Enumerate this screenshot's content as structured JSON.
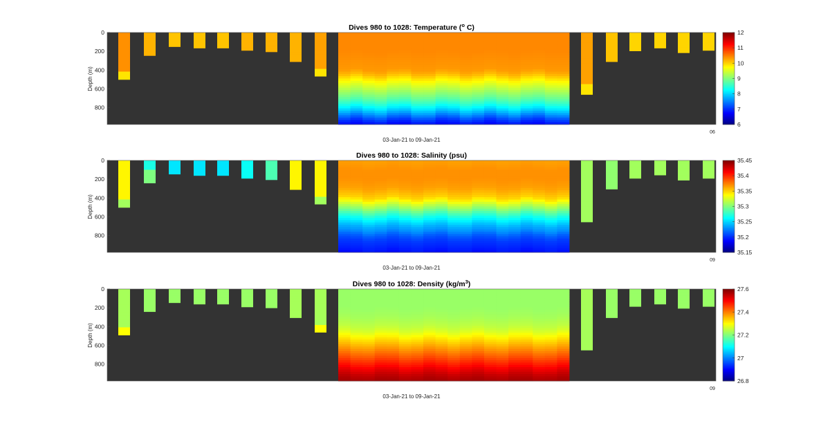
{
  "figure": {
    "background": "#ffffff",
    "plot_background": "#333333",
    "colormap": "jet"
  },
  "chart_data": [
    {
      "type": "heatmap",
      "title": "Dives 980 to 1028: Temperature (",
      "title_sup": "o",
      "title_after": " C)",
      "xlabel": "03-Jan-21 to 09-Jan-21",
      "ylabel": "Depth (m)",
      "ylim": [
        0,
        980
      ],
      "yticks": [
        "0",
        "200",
        "400",
        "600",
        "800"
      ],
      "y_tick_values": [
        0,
        200,
        400,
        600,
        800
      ],
      "corner_label": "06",
      "colorbar": {
        "min": 6,
        "max": 12,
        "tick_values": [
          6,
          7,
          8,
          9,
          10,
          11,
          12
        ],
        "tick_labels": [
          "6",
          "7",
          "8",
          "9",
          "10",
          "11",
          "12"
        ]
      },
      "shallow_dives": [
        {
          "max_depth": 500,
          "value": 10.4,
          "bottom_value": 9.9
        },
        {
          "max_depth": 245,
          "value": 10.2
        },
        {
          "max_depth": 150,
          "value": 10.1
        },
        {
          "max_depth": 165,
          "value": 10.1
        },
        {
          "max_depth": 165,
          "value": 10.1
        },
        {
          "max_depth": 190,
          "value": 10.2
        },
        {
          "max_depth": 205,
          "value": 10.2
        },
        {
          "max_depth": 310,
          "value": 10.2
        },
        {
          "max_depth": 465,
          "value": 10.3,
          "bottom_value": 9.9
        }
      ],
      "deep_profile": {
        "depth": [
          0,
          100,
          200,
          300,
          400,
          450,
          500,
          550,
          600,
          650,
          700,
          750,
          800,
          850,
          900,
          950,
          980
        ],
        "value": [
          10.45,
          10.45,
          10.45,
          10.4,
          10.35,
          10.15,
          9.85,
          9.6,
          9.35,
          9.1,
          8.85,
          8.55,
          8.2,
          7.8,
          7.35,
          6.95,
          6.8
        ]
      },
      "late_dives": [
        {
          "max_depth": 660,
          "value": 10.3,
          "bottom_value": 9.9
        },
        {
          "max_depth": 310,
          "value": 10.1
        },
        {
          "max_depth": 195,
          "value": 10.0
        },
        {
          "max_depth": 165,
          "value": 10.0
        },
        {
          "max_depth": 215,
          "value": 10.0
        },
        {
          "max_depth": 190,
          "value": 10.0
        }
      ]
    },
    {
      "type": "heatmap",
      "title": "Dives 980 to 1028: Salinity (psu)",
      "title_sup": "",
      "title_after": "",
      "xlabel": "03-Jan-21 to 09-Jan-21",
      "ylabel": "Depth (m)",
      "ylim": [
        0,
        980
      ],
      "yticks": [
        "0",
        "200",
        "400",
        "600",
        "800"
      ],
      "y_tick_values": [
        0,
        200,
        400,
        600,
        800
      ],
      "corner_label": "09",
      "colorbar": {
        "min": 35.15,
        "max": 35.45,
        "tick_values": [
          35.15,
          35.2,
          35.25,
          35.3,
          35.35,
          35.4,
          35.45
        ],
        "tick_labels": [
          "35.15",
          "35.2",
          "35.25",
          "35.3",
          "35.35",
          "35.4",
          "35.45"
        ]
      },
      "shallow_dives": [
        {
          "max_depth": 500,
          "value": 35.34,
          "bottom_value": 35.31
        },
        {
          "max_depth": 240,
          "value": 35.3,
          "top_value": 35.27
        },
        {
          "max_depth": 145,
          "value": 35.255
        },
        {
          "max_depth": 160,
          "value": 35.255
        },
        {
          "max_depth": 160,
          "value": 35.255
        },
        {
          "max_depth": 190,
          "value": 35.265
        },
        {
          "max_depth": 205,
          "value": 35.285
        },
        {
          "max_depth": 310,
          "value": 35.34
        },
        {
          "max_depth": 465,
          "value": 35.34,
          "bottom_value": 35.31
        }
      ],
      "deep_profile": {
        "depth": [
          0,
          100,
          200,
          300,
          400,
          450,
          500,
          550,
          600,
          650,
          700,
          750,
          800,
          850,
          900,
          950,
          980
        ],
        "value": [
          35.365,
          35.37,
          35.37,
          35.365,
          35.35,
          35.33,
          35.31,
          35.29,
          35.27,
          35.255,
          35.24,
          35.23,
          35.215,
          35.205,
          35.2,
          35.195,
          35.19
        ]
      },
      "late_dives": [
        {
          "max_depth": 655,
          "value": 35.31
        },
        {
          "max_depth": 305,
          "value": 35.305
        },
        {
          "max_depth": 190,
          "value": 35.31
        },
        {
          "max_depth": 155,
          "value": 35.31
        },
        {
          "max_depth": 210,
          "value": 35.31
        },
        {
          "max_depth": 190,
          "value": 35.31
        }
      ]
    },
    {
      "type": "heatmap",
      "title": "Dives 980 to 1028: Density (kg/m",
      "title_sup": "3",
      "title_after": ")",
      "xlabel": "03-Jan-21 to 09-Jan-21",
      "ylabel": "Depth (m)",
      "ylim": [
        0,
        980
      ],
      "yticks": [
        "0",
        "200",
        "400",
        "600",
        "800"
      ],
      "y_tick_values": [
        0,
        200,
        400,
        600,
        800
      ],
      "corner_label": "09",
      "colorbar": {
        "min": 26.8,
        "max": 27.6,
        "tick_values": [
          26.8,
          27.0,
          27.2,
          27.4,
          27.6
        ],
        "tick_labels": [
          "26.8",
          "27",
          "27.2",
          "27.4",
          "27.6"
        ]
      },
      "shallow_dives": [
        {
          "max_depth": 490,
          "value": 27.23,
          "bottom_value": 27.3
        },
        {
          "max_depth": 240,
          "value": 27.22
        },
        {
          "max_depth": 145,
          "value": 27.22
        },
        {
          "max_depth": 160,
          "value": 27.22
        },
        {
          "max_depth": 160,
          "value": 27.22
        },
        {
          "max_depth": 190,
          "value": 27.22
        },
        {
          "max_depth": 200,
          "value": 27.22
        },
        {
          "max_depth": 305,
          "value": 27.23
        },
        {
          "max_depth": 460,
          "value": 27.23,
          "bottom_value": 27.3
        }
      ],
      "deep_profile": {
        "depth": [
          0,
          100,
          200,
          300,
          400,
          450,
          500,
          550,
          600,
          650,
          700,
          750,
          800,
          850,
          900,
          950,
          980
        ],
        "value": [
          27.22,
          27.22,
          27.22,
          27.23,
          27.25,
          27.27,
          27.3,
          27.33,
          27.36,
          27.39,
          27.42,
          27.45,
          27.48,
          27.51,
          27.54,
          27.56,
          27.57
        ]
      },
      "late_dives": [
        {
          "max_depth": 650,
          "value": 27.23
        },
        {
          "max_depth": 305,
          "value": 27.22
        },
        {
          "max_depth": 185,
          "value": 27.22
        },
        {
          "max_depth": 160,
          "value": 27.22
        },
        {
          "max_depth": 205,
          "value": 27.22
        },
        {
          "max_depth": 185,
          "value": 27.22
        }
      ]
    }
  ]
}
